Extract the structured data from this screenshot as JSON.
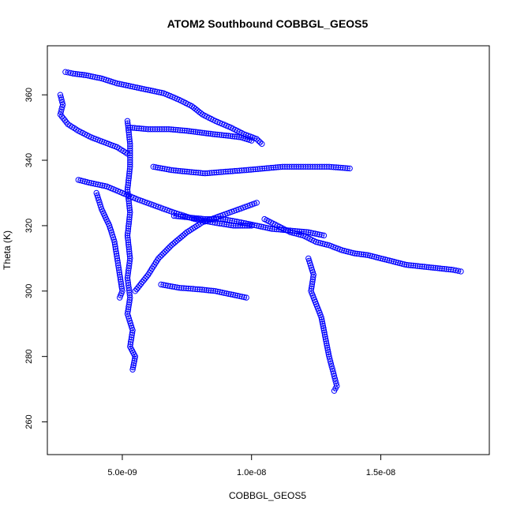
{
  "chart_data": {
    "type": "scatter",
    "title": "ATOM2 Southbound COBBGL_GEOS5",
    "xlabel": "COBBGL_GEOS5",
    "ylabel": "Theta (K)",
    "xlim": [
      2.1e-09,
      1.92e-08
    ],
    "ylim": [
      250,
      375
    ],
    "x_ticks": [
      5e-09,
      1e-08,
      1.5e-08
    ],
    "x_tick_labels": [
      "5.0e-09",
      "1.0e-08",
      "1.5e-08"
    ],
    "y_ticks": [
      260,
      280,
      300,
      320,
      340,
      360
    ],
    "y_tick_labels": [
      "260",
      "280",
      "300",
      "320",
      "340",
      "360"
    ],
    "grid": false,
    "marker": "open-circle",
    "color": "#0000ff",
    "series": [
      {
        "points": [
          [
            2.8e-09,
            367
          ],
          [
            3.1e-09,
            366.5
          ],
          [
            3.6e-09,
            366
          ],
          [
            4.2e-09,
            365
          ],
          [
            4.8e-09,
            363.5
          ],
          [
            5.4e-09,
            362.5
          ],
          [
            6e-09,
            361.5
          ],
          [
            6.6e-09,
            360.5
          ],
          [
            7.2e-09,
            358.5
          ],
          [
            7.7e-09,
            356.5
          ],
          [
            8.1e-09,
            354
          ],
          [
            8.6e-09,
            352
          ],
          [
            9.2e-09,
            350
          ],
          [
            9.7e-09,
            348
          ],
          [
            1.02e-08,
            346.5
          ],
          [
            1.04e-08,
            345
          ]
        ]
      },
      {
        "points": [
          [
            2.6e-09,
            360
          ],
          [
            2.7e-09,
            357
          ],
          [
            2.6e-09,
            354
          ],
          [
            2.9e-09,
            351
          ],
          [
            3.3e-09,
            349
          ],
          [
            3.8e-09,
            347
          ],
          [
            4.3e-09,
            345.5
          ],
          [
            4.8e-09,
            344
          ],
          [
            5.2e-09,
            342
          ]
        ]
      },
      {
        "points": [
          [
            5.2e-09,
            352
          ],
          [
            5.3e-09,
            345
          ],
          [
            5.3e-09,
            338
          ],
          [
            5.2e-09,
            331
          ],
          [
            5.3e-09,
            324
          ],
          [
            5.2e-09,
            317
          ],
          [
            5.3e-09,
            310
          ],
          [
            5.2e-09,
            304
          ],
          [
            5.3e-09,
            298
          ],
          [
            5.2e-09,
            293
          ],
          [
            5.4e-09,
            288
          ],
          [
            5.3e-09,
            283
          ],
          [
            5.5e-09,
            280
          ],
          [
            5.4e-09,
            276
          ]
        ]
      },
      {
        "points": [
          [
            5.3e-09,
            350
          ],
          [
            6e-09,
            349.5
          ],
          [
            6.8e-09,
            349.5
          ],
          [
            7.5e-09,
            349
          ],
          [
            8e-09,
            348.5
          ],
          [
            8.5e-09,
            348
          ],
          [
            9.1e-09,
            347.5
          ],
          [
            9.6e-09,
            347
          ],
          [
            1e-08,
            346
          ]
        ]
      },
      {
        "points": [
          [
            6.2e-09,
            338
          ],
          [
            6.9e-09,
            337
          ],
          [
            7.5e-09,
            336.5
          ],
          [
            8.2e-09,
            336
          ],
          [
            9e-09,
            336.5
          ],
          [
            9.8e-09,
            337
          ],
          [
            1.05e-08,
            337.5
          ],
          [
            1.12e-08,
            338
          ],
          [
            1.2e-08,
            338
          ],
          [
            1.3e-08,
            338
          ],
          [
            1.38e-08,
            337.5
          ]
        ]
      },
      {
        "points": [
          [
            3.3e-09,
            334
          ],
          [
            3.8e-09,
            333
          ],
          [
            4.4e-09,
            332
          ],
          [
            5e-09,
            330
          ],
          [
            5.6e-09,
            328
          ],
          [
            6.3e-09,
            326
          ],
          [
            7e-09,
            324
          ],
          [
            7.8e-09,
            322
          ],
          [
            8.5e-09,
            321
          ],
          [
            9.3e-09,
            320
          ],
          [
            1e-08,
            320
          ]
        ]
      },
      {
        "points": [
          [
            5.5e-09,
            300
          ],
          [
            6e-09,
            305
          ],
          [
            6.4e-09,
            310
          ],
          [
            6.9e-09,
            314
          ],
          [
            7.5e-09,
            318
          ],
          [
            8.1e-09,
            321
          ],
          [
            8.8e-09,
            323
          ],
          [
            9.5e-09,
            325
          ],
          [
            1.02e-08,
            327
          ]
        ]
      },
      {
        "points": [
          [
            1.05e-08,
            322
          ],
          [
            1.1e-08,
            320
          ],
          [
            1.15e-08,
            318
          ],
          [
            1.2e-08,
            317
          ],
          [
            1.25e-08,
            315
          ],
          [
            1.3e-08,
            314
          ],
          [
            1.35e-08,
            312.5
          ],
          [
            1.4e-08,
            311.5
          ],
          [
            1.45e-08,
            311
          ],
          [
            1.5e-08,
            310
          ],
          [
            1.55e-08,
            309
          ],
          [
            1.6e-08,
            308
          ],
          [
            1.66e-08,
            307.5
          ],
          [
            1.72e-08,
            307
          ],
          [
            1.78e-08,
            306.5
          ],
          [
            1.81e-08,
            306
          ]
        ]
      },
      {
        "points": [
          [
            1.22e-08,
            310
          ],
          [
            1.24e-08,
            305
          ],
          [
            1.23e-08,
            300
          ],
          [
            1.25e-08,
            296
          ],
          [
            1.27e-08,
            292
          ],
          [
            1.28e-08,
            288
          ],
          [
            1.29e-08,
            284
          ],
          [
            1.3e-08,
            280
          ],
          [
            1.31e-08,
            277
          ],
          [
            1.32e-08,
            274
          ],
          [
            1.33e-08,
            271
          ],
          [
            1.32e-08,
            269.5
          ]
        ]
      },
      {
        "points": [
          [
            6.5e-09,
            302
          ],
          [
            7.2e-09,
            301
          ],
          [
            8e-09,
            300.5
          ],
          [
            8.6e-09,
            300
          ],
          [
            9.2e-09,
            299
          ],
          [
            9.8e-09,
            298
          ]
        ]
      },
      {
        "points": [
          [
            4e-09,
            330
          ],
          [
            4.2e-09,
            325
          ],
          [
            4.5e-09,
            320
          ],
          [
            4.7e-09,
            315
          ],
          [
            4.8e-09,
            310
          ],
          [
            4.9e-09,
            305
          ],
          [
            5e-09,
            300
          ],
          [
            4.9e-09,
            298
          ]
        ]
      },
      {
        "points": [
          [
            7e-09,
            323
          ],
          [
            7.6e-09,
            322.5
          ],
          [
            8.2e-09,
            322
          ],
          [
            8.9e-09,
            322
          ],
          [
            9.6e-09,
            321
          ],
          [
            1.02e-08,
            320
          ],
          [
            1.08e-08,
            319
          ],
          [
            1.15e-08,
            318.5
          ],
          [
            1.22e-08,
            318
          ],
          [
            1.28e-08,
            317
          ]
        ]
      }
    ]
  }
}
